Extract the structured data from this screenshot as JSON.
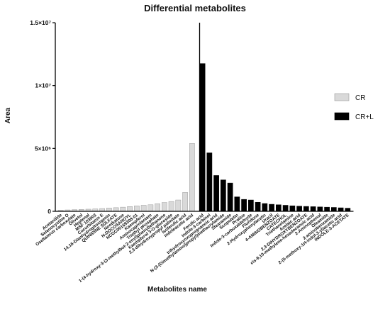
{
  "chart_data": {
    "type": "bar",
    "title": "Differential metabolites",
    "xlabel": "Metabolites name",
    "ylabel": "Area",
    "ylim": [
      0,
      15000000
    ],
    "yticks": [
      {
        "value": 0,
        "label": "0"
      },
      {
        "value": 5000000,
        "label": "5×10⁶"
      },
      {
        "value": 10000000,
        "label": "1×10⁷"
      },
      {
        "value": 15000000,
        "label": "1.5×10⁷"
      }
    ],
    "legend_position": "right",
    "grid": false,
    "series": [
      {
        "name": "CR",
        "color": "#d9d9d9",
        "categories": [
          "Acetanilide",
          "Selenocystine O",
          "Oseltamivir carboxylate",
          "Olivetol",
          "Heptenal",
          "MSF 103003",
          "Cucurbitacin E",
          "14,16-Dianhydrogitoxigenin",
          "QUINIDINE SULFATE",
          "Nootkatone",
          "N-DOCOSANOYL",
          "NCGC00169308-01",
          "Kaempferol",
          "Aminocaprolactam",
          "Triethyl phosphate",
          "1-(4-hydroxy-3-(3-methylbut-2-enyl)phenyl)ethanone",
          "Kaempferol 3-O-glucoside",
          "2,3-dihydroxypropyl palmitate",
          "Isoferulic acid",
          "Indoleacetic acid"
        ],
        "values": [
          90000,
          110000,
          130000,
          150000,
          170000,
          190000,
          220000,
          260000,
          290000,
          330000,
          380000,
          430000,
          480000,
          520000,
          600000,
          700000,
          780000,
          900000,
          1500000,
          5400000
        ]
      },
      {
        "name": "CR+L",
        "color": "#000000",
        "categories": [
          "Ferulic acid",
          "Indole-3-carbinol",
          "trihydroxyoxopregnanoic acid",
          "N-(3-(Dimethylamino)propyl)methacrylamide",
          "Stearamide",
          "Scopoletin",
          "Proline",
          "Indole-3-carboxaldehyde",
          "Fluridone",
          "2-Hydroxyphenylacetic",
          "Uracil",
          "4-AMINOBENZOATE",
          "CATECHOL",
          "Triethanolamine",
          "Azelaic acid",
          "2,3-DIHYDROXYBENZOATE",
          "cis-9,10-methylene-hexadecanoic acid",
          "2-Aminophenol",
          "Oleamide",
          "2-aminobenzamide",
          "2-(5-methoxy-1H-indol-3-yl)acetic acid",
          "INDOLE-3-ACETATE"
        ],
        "values": [
          11750000,
          4650000,
          2850000,
          2500000,
          2250000,
          1150000,
          950000,
          900000,
          720000,
          620000,
          560000,
          520000,
          480000,
          440000,
          410000,
          390000,
          370000,
          350000,
          330000,
          310000,
          280000,
          250000
        ]
      }
    ]
  }
}
